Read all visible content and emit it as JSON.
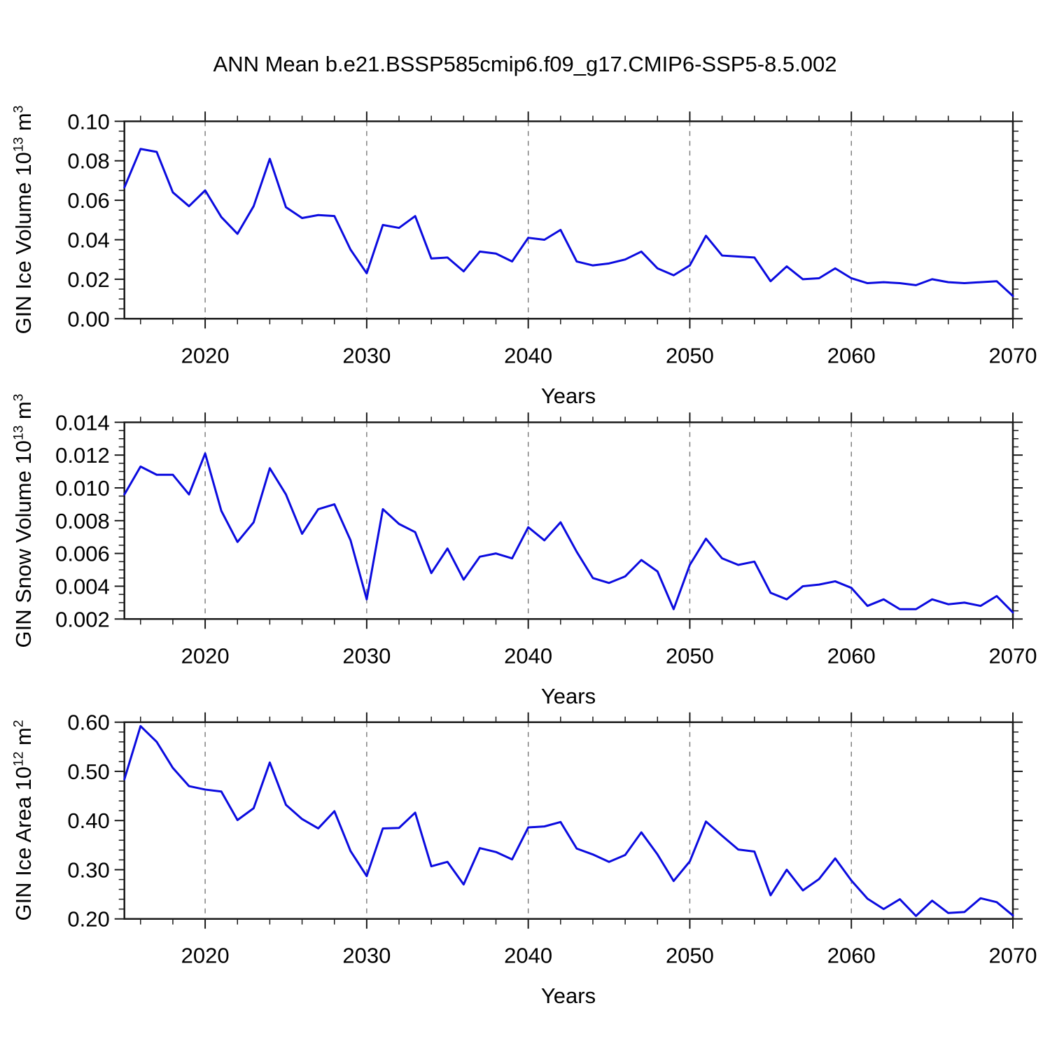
{
  "title": "ANN Mean b.e21.BSSP585cmip6.f09_g17.CMIP6-SSP5-8.5.002",
  "xlabel": "Years",
  "colors": {
    "line": "#0b0bdf",
    "axis": "#1a1a1a",
    "gridline": "#787878",
    "background": "#ffffff"
  },
  "chart_data": {
    "type": "line",
    "grid": "dashed-vertical-at-decades",
    "legend": "none",
    "xlim": [
      2015,
      2070
    ],
    "xtick_values": [
      2020,
      2030,
      2040,
      2050,
      2060,
      2070
    ],
    "xtick_labels": [
      "2020",
      "2030",
      "2040",
      "2050",
      "2060",
      "2070"
    ],
    "xminor_step": 2,
    "grid_years": [
      2020,
      2030,
      2040,
      2050,
      2060
    ],
    "years": [
      2015,
      2016,
      2017,
      2018,
      2019,
      2020,
      2021,
      2022,
      2023,
      2024,
      2025,
      2026,
      2027,
      2028,
      2029,
      2030,
      2031,
      2032,
      2033,
      2034,
      2035,
      2036,
      2037,
      2038,
      2039,
      2040,
      2041,
      2042,
      2043,
      2044,
      2045,
      2046,
      2047,
      2048,
      2049,
      2050,
      2051,
      2052,
      2053,
      2054,
      2055,
      2056,
      2057,
      2058,
      2059,
      2060,
      2061,
      2062,
      2063,
      2064,
      2065,
      2066,
      2067,
      2068,
      2069,
      2070
    ],
    "panels": [
      {
        "ylabel_text": "GIN Ice Volume 10^13 m^3",
        "ylabel_parts": {
          "prefix": "GIN Ice Volume 10",
          "exp": "13",
          "unit": " m",
          "unit_exp": "3"
        },
        "ylim": [
          0.0,
          0.1
        ],
        "ytick_values": [
          0.0,
          0.02,
          0.04,
          0.06,
          0.08,
          0.1
        ],
        "ytick_labels": [
          "0.00",
          "0.02",
          "0.04",
          "0.06",
          "0.08",
          "0.10"
        ],
        "yminor_step": 0.005,
        "values": [
          0.0665,
          0.086,
          0.0845,
          0.064,
          0.057,
          0.065,
          0.0515,
          0.043,
          0.057,
          0.081,
          0.0565,
          0.051,
          0.0525,
          0.052,
          0.035,
          0.023,
          0.0475,
          0.046,
          0.052,
          0.0305,
          0.031,
          0.024,
          0.034,
          0.033,
          0.029,
          0.041,
          0.04,
          0.045,
          0.029,
          0.027,
          0.028,
          0.03,
          0.034,
          0.0255,
          0.022,
          0.027,
          0.042,
          0.032,
          0.0315,
          0.031,
          0.019,
          0.0265,
          0.02,
          0.0205,
          0.0255,
          0.0205,
          0.018,
          0.0185,
          0.018,
          0.017,
          0.02,
          0.0185,
          0.018,
          0.0185,
          0.019,
          0.0115
        ]
      },
      {
        "ylabel_text": "GIN Snow Volume 10^13 m^3",
        "ylabel_parts": {
          "prefix": "GIN Snow Volume 10",
          "exp": "13",
          "unit": " m",
          "unit_exp": "3"
        },
        "ylim": [
          0.002,
          0.014
        ],
        "ytick_values": [
          0.002,
          0.004,
          0.006,
          0.008,
          0.01,
          0.012,
          0.014
        ],
        "ytick_labels": [
          "0.002",
          "0.004",
          "0.006",
          "0.008",
          "0.010",
          "0.012",
          "0.014"
        ],
        "yminor_step": 0.0005,
        "values": [
          0.0096,
          0.0113,
          0.0108,
          0.0108,
          0.0096,
          0.0121,
          0.0086,
          0.0067,
          0.0079,
          0.0112,
          0.0096,
          0.0072,
          0.0087,
          0.009,
          0.0068,
          0.0032,
          0.0087,
          0.0078,
          0.0073,
          0.0048,
          0.0063,
          0.0044,
          0.0058,
          0.006,
          0.0057,
          0.0076,
          0.0068,
          0.0079,
          0.0061,
          0.0045,
          0.0042,
          0.0046,
          0.0056,
          0.0049,
          0.0026,
          0.0053,
          0.0069,
          0.0057,
          0.0053,
          0.0055,
          0.0036,
          0.0032,
          0.004,
          0.0041,
          0.0043,
          0.0039,
          0.0028,
          0.0032,
          0.0026,
          0.0026,
          0.0032,
          0.0029,
          0.003,
          0.0028,
          0.0034,
          0.0024
        ]
      },
      {
        "ylabel_text": "GIN Ice Area 10^12 m^2",
        "ylabel_parts": {
          "prefix": "GIN Ice Area 10",
          "exp": "12",
          "unit": " m",
          "unit_exp": "2"
        },
        "ylim": [
          0.2,
          0.6
        ],
        "ytick_values": [
          0.2,
          0.3,
          0.4,
          0.5,
          0.6
        ],
        "ytick_labels": [
          "0.20",
          "0.30",
          "0.40",
          "0.50",
          "0.60"
        ],
        "yminor_step": 0.02,
        "values": [
          0.484,
          0.592,
          0.56,
          0.507,
          0.47,
          0.463,
          0.459,
          0.401,
          0.425,
          0.518,
          0.432,
          0.403,
          0.384,
          0.419,
          0.338,
          0.287,
          0.384,
          0.385,
          0.416,
          0.307,
          0.316,
          0.27,
          0.344,
          0.336,
          0.321,
          0.386,
          0.388,
          0.397,
          0.343,
          0.331,
          0.316,
          0.33,
          0.376,
          0.331,
          0.277,
          0.317,
          0.398,
          0.369,
          0.341,
          0.337,
          0.248,
          0.3,
          0.258,
          0.281,
          0.323,
          0.278,
          0.241,
          0.22,
          0.24,
          0.206,
          0.237,
          0.212,
          0.214,
          0.242,
          0.234,
          0.207
        ]
      }
    ]
  }
}
